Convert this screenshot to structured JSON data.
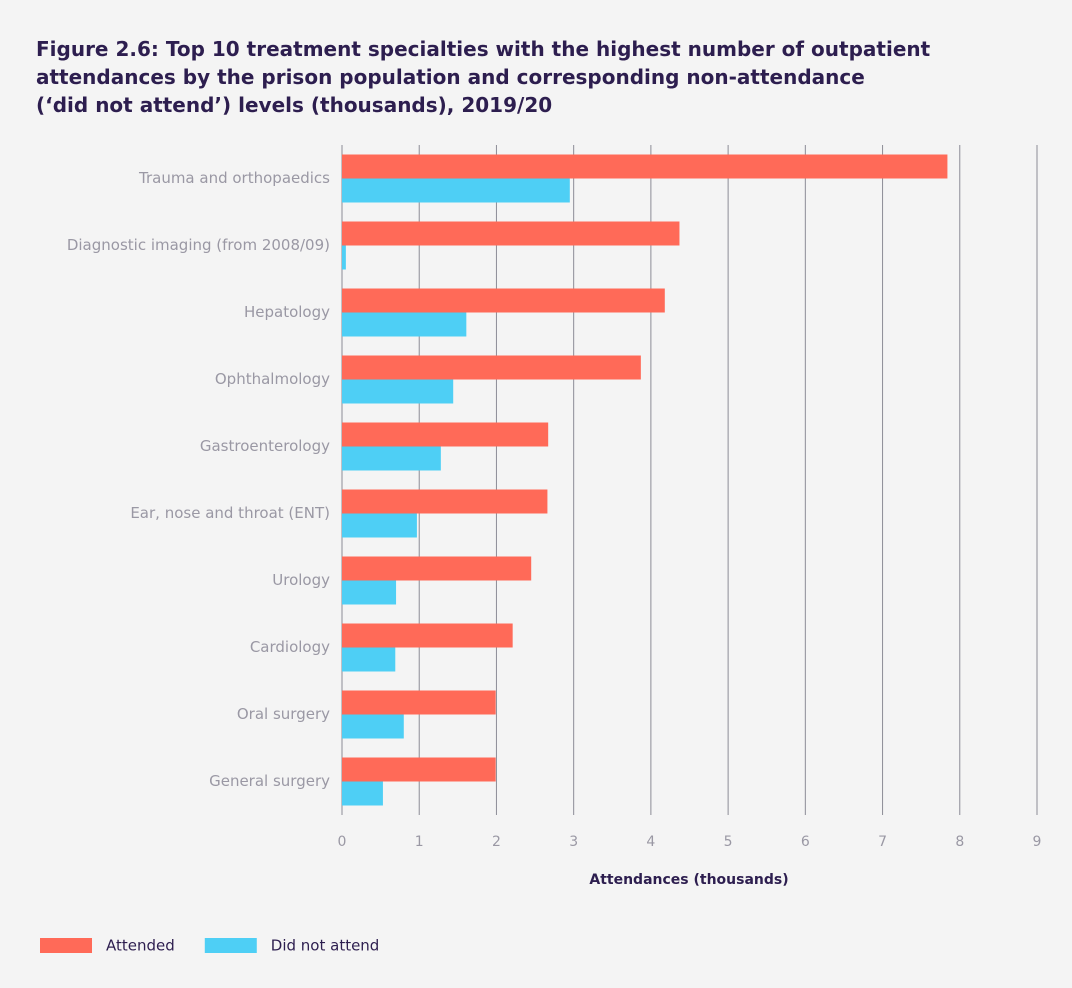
{
  "chart_data": {
    "type": "hbar",
    "title": [
      "Figure 2.6: Top 10 treatment specialties with the highest number of outpatient",
      "attendances by the prison population and corresponding non-attendance",
      "(‘did not attend’) levels (thousands), 2019/20"
    ],
    "categories": [
      "Trauma and orthopaedics",
      "Diagnostic imaging (from 2008/09)",
      "Hepatology",
      "Ophthalmology",
      "Gastroenterology",
      "Ear, nose and throat (ENT)",
      "Urology",
      "Cardiology",
      "Oral surgery",
      "General surgery"
    ],
    "series": [
      {
        "name": "Attended",
        "color": "#ff6a58",
        "values": [
          7.84,
          4.37,
          4.18,
          3.87,
          2.67,
          2.66,
          2.45,
          2.21,
          1.99,
          1.99
        ]
      },
      {
        "name": "Did not attend",
        "color": "#4ecff5",
        "values": [
          2.95,
          0.05,
          1.61,
          1.44,
          1.28,
          0.97,
          0.7,
          0.69,
          0.8,
          0.53
        ]
      }
    ],
    "xlabel": "Attendances (thousands)",
    "xlim": [
      0,
      9
    ],
    "xticks": [
      0,
      1,
      2,
      3,
      4,
      5,
      6,
      7,
      8,
      9
    ],
    "grid": true,
    "legend": "bottom-left"
  }
}
